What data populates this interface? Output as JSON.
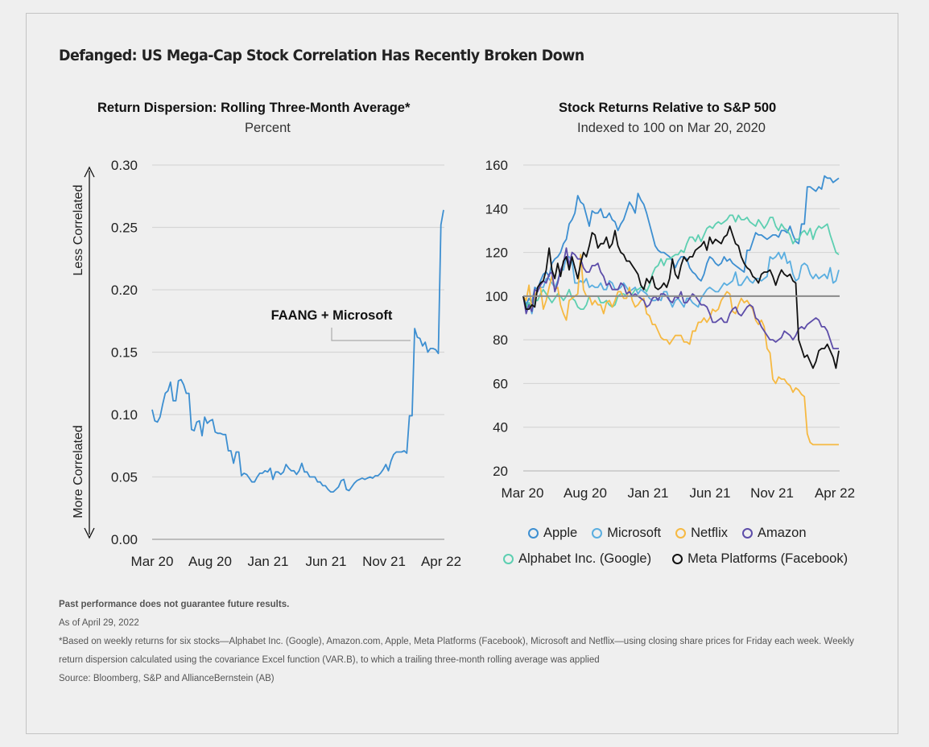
{
  "title": "Defanged: US Mega-Cap Stock Correlation Has Recently Broken Down",
  "chart_data": [
    {
      "type": "line",
      "title": "Return Dispersion: Rolling Three-Month Average*",
      "subtitle": "Percent",
      "xlabel": "",
      "ylabel_top": "Less Correlated",
      "ylabel_bottom": "More Correlated",
      "ylim": [
        0,
        0.3
      ],
      "yticks": [
        "0.00",
        "0.05",
        "0.10",
        "0.15",
        "0.20",
        "0.25",
        "0.30"
      ],
      "ytick_values": [
        0,
        0.05,
        0.1,
        0.15,
        0.2,
        0.25,
        0.3
      ],
      "xticks": [
        "Mar 20",
        "Aug 20",
        "Jan 21",
        "Jun 21",
        "Nov 21",
        "Apr 22"
      ],
      "grid": true,
      "annotation": "FAANG + Microsoft",
      "series": [
        {
          "name": "FAANG + Microsoft",
          "color": "#3d8fd1",
          "values": [
            0.104,
            0.095,
            0.094,
            0.098,
            0.108,
            0.117,
            0.119,
            0.126,
            0.111,
            0.111,
            0.127,
            0.128,
            0.124,
            0.117,
            0.117,
            0.088,
            0.087,
            0.094,
            0.095,
            0.083,
            0.098,
            0.093,
            0.095,
            0.096,
            0.086,
            0.085,
            0.085,
            0.084,
            0.084,
            0.071,
            0.071,
            0.061,
            0.07,
            0.07,
            0.051,
            0.053,
            0.052,
            0.049,
            0.046,
            0.046,
            0.05,
            0.053,
            0.053,
            0.055,
            0.054,
            0.057,
            0.048,
            0.054,
            0.054,
            0.052,
            0.054,
            0.06,
            0.057,
            0.055,
            0.055,
            0.052,
            0.055,
            0.061,
            0.054,
            0.054,
            0.05,
            0.05,
            0.05,
            0.046,
            0.046,
            0.043,
            0.043,
            0.04,
            0.038,
            0.038,
            0.04,
            0.042,
            0.047,
            0.048,
            0.04,
            0.039,
            0.042,
            0.045,
            0.047,
            0.048,
            0.049,
            0.048,
            0.049,
            0.05,
            0.049,
            0.051,
            0.051,
            0.053,
            0.056,
            0.06,
            0.055,
            0.063,
            0.068,
            0.07,
            0.07,
            0.07,
            0.071,
            0.069,
            0.099,
            0.099,
            0.169,
            0.162,
            0.161,
            0.155,
            0.158,
            0.15,
            0.153,
            0.153,
            0.152,
            0.149,
            0.252,
            0.264
          ]
        }
      ]
    },
    {
      "type": "line",
      "title": "Stock Returns Relative to S&P 500",
      "subtitle": "Indexed to 100 on Mar 20, 2020",
      "xlabel": "",
      "ylabel": "",
      "ylim": [
        20,
        160
      ],
      "yticks": [
        "20",
        "40",
        "60",
        "80",
        "100",
        "120",
        "140",
        "160"
      ],
      "ytick_values": [
        20,
        40,
        60,
        80,
        100,
        120,
        140,
        160
      ],
      "xticks": [
        "Mar 20",
        "Aug 20",
        "Jan 21",
        "Jun 21",
        "Nov 21",
        "Apr 22"
      ],
      "grid": true,
      "baseline": 100,
      "legend_position": "bottom",
      "series": [
        {
          "name": "Apple",
          "color": "#3d8fd1",
          "values": [
            100,
            96,
            99,
            97,
            104,
            103,
            107,
            110,
            111,
            109,
            115,
            117,
            118,
            120,
            124,
            126,
            133,
            135,
            138,
            146,
            143,
            142,
            137,
            132,
            139,
            138,
            138,
            140,
            136,
            136,
            138,
            135,
            134,
            130,
            133,
            135,
            139,
            143,
            141,
            138,
            147,
            144,
            142,
            138,
            133,
            128,
            123,
            121,
            120,
            120,
            119,
            118,
            116,
            113,
            116,
            118,
            118,
            117,
            113,
            111,
            110,
            108,
            107,
            110,
            115,
            118,
            117,
            115,
            114,
            115,
            118,
            116,
            117,
            115,
            114,
            113,
            112,
            111,
            121,
            121,
            125,
            129,
            128,
            128,
            127,
            126,
            127,
            128,
            128,
            127,
            130,
            130,
            129,
            132,
            128,
            125,
            124,
            133,
            133,
            150,
            150,
            149,
            148,
            150,
            149,
            155,
            154,
            154,
            152,
            153,
            154
          ]
        },
        {
          "name": "Microsoft",
          "color": "#5aaee0",
          "values": [
            100,
            93,
            97,
            92,
            99,
            103,
            104,
            104,
            108,
            108,
            106,
            104,
            107,
            112,
            112,
            118,
            118,
            116,
            106,
            106,
            107,
            106,
            108,
            104,
            105,
            104,
            104,
            106,
            103,
            103,
            107,
            106,
            103,
            103,
            104,
            106,
            104,
            102,
            103,
            104,
            101,
            103,
            102,
            101,
            99,
            98,
            98,
            99,
            98,
            102,
            102,
            98,
            95,
            98,
            99,
            97,
            95,
            99,
            99,
            97,
            96,
            95,
            99,
            101,
            103,
            104,
            103,
            102,
            102,
            104,
            106,
            105,
            106,
            107,
            111,
            105,
            105,
            107,
            109,
            107,
            106,
            108,
            108,
            107,
            108,
            109,
            118,
            117,
            118,
            120,
            117,
            120,
            115,
            116,
            110,
            107,
            108,
            114,
            115,
            114,
            110,
            108,
            110,
            108,
            109,
            110,
            108,
            113,
            106,
            107,
            112
          ]
        },
        {
          "name": "Netflix",
          "color": "#f6b942",
          "values": [
            100,
            98,
            105,
            94,
            100,
            103,
            104,
            94,
            98,
            104,
            109,
            103,
            104,
            96,
            92,
            89,
            98,
            99,
            100,
            101,
            119,
            103,
            100,
            100,
            96,
            98,
            96,
            96,
            92,
            97,
            98,
            95,
            98,
            102,
            102,
            99,
            99,
            104,
            98,
            95,
            96,
            98,
            99,
            92,
            91,
            87,
            87,
            84,
            81,
            80,
            80,
            78,
            80,
            82,
            82,
            82,
            79,
            79,
            78,
            84,
            84,
            88,
            88,
            90,
            88,
            90,
            94,
            93,
            94,
            98,
            100,
            102,
            101,
            93,
            92,
            96,
            99,
            97,
            98,
            96,
            94,
            89,
            87,
            89,
            86,
            76,
            74,
            62,
            60,
            63,
            62,
            62,
            60,
            59,
            56,
            58,
            57,
            55,
            54,
            37,
            33,
            32,
            32,
            32,
            32,
            32,
            32,
            32,
            32,
            32,
            32
          ]
        },
        {
          "name": "Amazon",
          "color": "#5d4da9",
          "values": [
            100,
            92,
            96,
            93,
            103,
            102,
            105,
            107,
            106,
            110,
            111,
            102,
            106,
            112,
            115,
            122,
            114,
            120,
            119,
            117,
            117,
            113,
            111,
            111,
            114,
            114,
            115,
            111,
            109,
            105,
            106,
            103,
            103,
            103,
            106,
            105,
            101,
            102,
            100,
            101,
            100,
            99,
            98,
            95,
            96,
            99,
            100,
            98,
            101,
            101,
            100,
            98,
            97,
            100,
            99,
            102,
            97,
            97,
            99,
            101,
            100,
            98,
            96,
            96,
            95,
            92,
            88,
            88,
            89,
            90,
            88,
            88,
            92,
            94,
            95,
            92,
            91,
            93,
            95,
            96,
            95,
            90,
            89,
            86,
            84,
            82,
            80,
            80,
            79,
            80,
            81,
            84,
            83,
            82,
            80,
            82,
            85,
            86,
            85,
            87,
            88,
            89,
            90,
            89,
            86,
            86,
            84,
            80,
            76,
            76,
            76
          ]
        },
        {
          "name": "Alphabet Inc. (Google)",
          "color": "#5dcfb1",
          "values": [
            100,
            95,
            97,
            95,
            98,
            98,
            101,
            103,
            101,
            99,
            97,
            99,
            101,
            100,
            98,
            100,
            103,
            99,
            98,
            95,
            94,
            94,
            96,
            100,
            100,
            100,
            100,
            97,
            97,
            98,
            96,
            95,
            96,
            100,
            101,
            101,
            100,
            100,
            101,
            103,
            103,
            104,
            104,
            102,
            105,
            110,
            113,
            114,
            117,
            114,
            117,
            117,
            118,
            119,
            119,
            121,
            120,
            124,
            127,
            127,
            125,
            128,
            125,
            128,
            131,
            132,
            131,
            133,
            134,
            133,
            134,
            135,
            137,
            137,
            134,
            137,
            135,
            135,
            136,
            134,
            133,
            132,
            135,
            133,
            131,
            133,
            136,
            136,
            132,
            130,
            133,
            131,
            130,
            128,
            124,
            126,
            126,
            129,
            130,
            128,
            131,
            126,
            130,
            132,
            131,
            132,
            133,
            128,
            124,
            120,
            119
          ]
        },
        {
          "name": "Meta Platforms (Facebook)",
          "color": "#111111",
          "values": [
            100,
            94,
            94,
            96,
            95,
            104,
            106,
            107,
            112,
            122,
            112,
            108,
            115,
            109,
            116,
            118,
            112,
            118,
            113,
            108,
            115,
            120,
            118,
            123,
            129,
            128,
            122,
            124,
            124,
            127,
            122,
            124,
            130,
            123,
            120,
            119,
            116,
            116,
            114,
            112,
            110,
            105,
            103,
            108,
            106,
            109,
            104,
            103,
            104,
            106,
            104,
            108,
            117,
            110,
            108,
            114,
            118,
            116,
            118,
            118,
            121,
            122,
            123,
            125,
            121,
            127,
            124,
            126,
            125,
            124,
            127,
            128,
            132,
            128,
            124,
            123,
            118,
            115,
            113,
            112,
            109,
            108,
            106,
            110,
            111,
            111,
            112,
            109,
            105,
            109,
            112,
            110,
            109,
            110,
            107,
            106,
            80,
            76,
            72,
            73,
            70,
            67,
            70,
            75,
            76,
            76,
            78,
            75,
            72,
            67,
            75
          ]
        }
      ]
    }
  ],
  "legend": {
    "row1": [
      {
        "name": "Apple",
        "color": "#3d8fd1"
      },
      {
        "name": "Microsoft",
        "color": "#5aaee0"
      },
      {
        "name": "Netflix",
        "color": "#f6b942"
      },
      {
        "name": "Amazon",
        "color": "#5d4da9"
      }
    ],
    "row2": [
      {
        "name": "Alphabet Inc. (Google)",
        "color": "#5dcfb1"
      },
      {
        "name": "Meta Platforms (Facebook)",
        "color": "#111111"
      }
    ]
  },
  "footnotes": {
    "disclaimer": "Past performance does not guarantee future results.",
    "as_of": "As of April 29, 2022",
    "note": "*Based on weekly returns for six stocks—Alphabet Inc. (Google), Amazon.com, Apple, Meta Platforms (Facebook), Microsoft and Netflix—using closing share prices for Friday each week. Weekly return dispersion calculated using the covariance Excel function (VAR.B), to which a trailing three-month rolling average was applied",
    "source": "Source: Bloomberg, S&P and AllianceBernstein (AB)"
  }
}
